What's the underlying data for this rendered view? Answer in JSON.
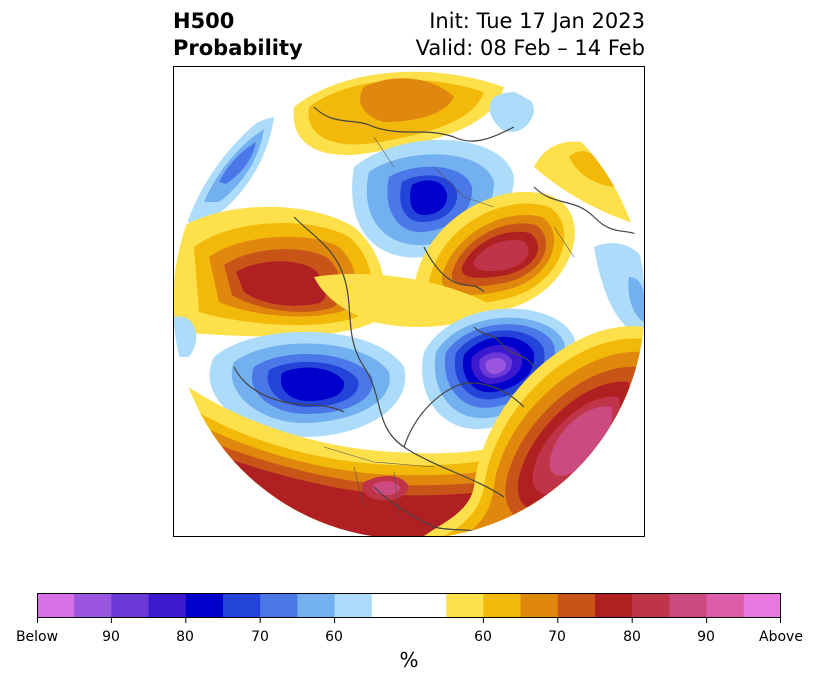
{
  "title": {
    "variable": "H500",
    "product": "Probability",
    "init": "Init: Tue 17 Jan 2023",
    "valid": "Valid: 08 Feb – 14 Feb"
  },
  "colorbar": {
    "label": "%",
    "below_colors": [
      "#d570e6",
      "#9a56de",
      "#6b39d8",
      "#3a19cf",
      "#0000cc",
      "#2443d8",
      "#4a78e8",
      "#73b0f0",
      "#addcfa"
    ],
    "neutral_color": "#ffffff",
    "above_colors": [
      "#fde04a",
      "#f2b90a",
      "#e0880e",
      "#c85418",
      "#b01f22",
      "#bf3448",
      "#cc4a80",
      "#dc5ea8",
      "#e878e0"
    ],
    "tick_labels": [
      "Below",
      "90",
      "80",
      "70",
      "60",
      "60",
      "70",
      "80",
      "90",
      "Above"
    ]
  },
  "map": {
    "projection": "north-polar-stereographic",
    "anomalies": [
      {
        "region": "Canada / Hudson Bay",
        "sign": "below",
        "peak_category": "90"
      },
      {
        "region": "Alaska",
        "sign": "below",
        "peak_category": "80"
      },
      {
        "region": "Northeast Russia / Siberia",
        "sign": "below",
        "peak_category": "70"
      },
      {
        "region": "Northern Europe",
        "sign": "below",
        "peak_category": "80"
      },
      {
        "region": "Aleutians / North Pacific",
        "sign": "above",
        "peak_category": "80"
      },
      {
        "region": "Southeast US / Gulf",
        "sign": "above",
        "peak_category": "90"
      },
      {
        "region": "Central Siberia",
        "sign": "above",
        "peak_category": "90"
      },
      {
        "region": "North Atlantic",
        "sign": "above",
        "peak_category": "90"
      },
      {
        "region": "North Africa / Mediterranean",
        "sign": "above",
        "peak_category": "70"
      }
    ]
  }
}
